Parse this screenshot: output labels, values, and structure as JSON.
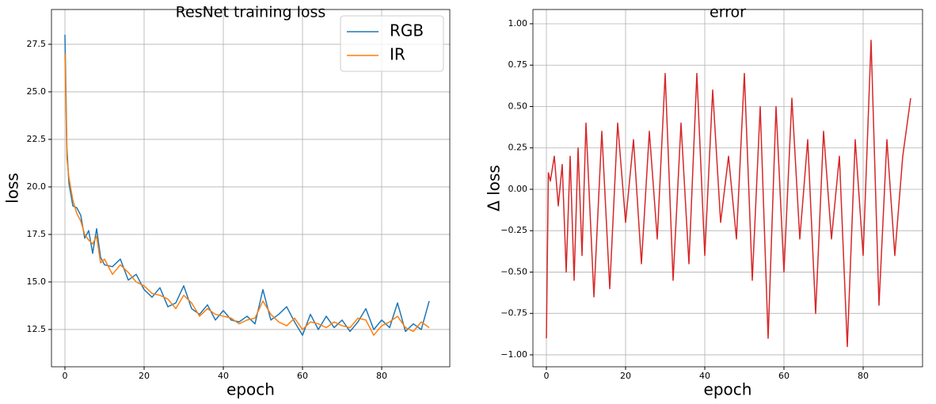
{
  "chart_data": [
    {
      "type": "line",
      "title": "ResNet training loss",
      "x_label": "epoch",
      "y_label": "loss",
      "x": [
        0,
        0.5,
        1,
        2,
        3,
        4,
        5,
        6,
        7,
        8,
        9,
        10,
        12,
        14,
        16,
        18,
        20,
        22,
        24,
        26,
        28,
        30,
        32,
        34,
        36,
        38,
        40,
        42,
        44,
        46,
        48,
        50,
        52,
        54,
        56,
        58,
        60,
        62,
        64,
        66,
        68,
        70,
        72,
        74,
        76,
        78,
        80,
        82,
        84,
        86,
        88,
        90,
        92
      ],
      "series": [
        {
          "name": "RGB",
          "color": "#1f77b4",
          "values": [
            28,
            22,
            20.2,
            19,
            18.9,
            18.5,
            17.3,
            17.7,
            16.5,
            17.8,
            16.3,
            15.9,
            15.8,
            16.2,
            15.1,
            15.4,
            14.6,
            14.2,
            14.7,
            13.7,
            13.9,
            14.8,
            13.6,
            13.3,
            13.8,
            13.0,
            13.5,
            13.0,
            12.9,
            13.2,
            12.8,
            14.6,
            13.0,
            13.3,
            13.7,
            12.9,
            12.2,
            13.3,
            12.5,
            13.2,
            12.6,
            13.0,
            12.4,
            12.9,
            13.6,
            12.5,
            13.0,
            12.6,
            13.9,
            12.4,
            12.8,
            12.5,
            14.0
          ]
        },
        {
          "name": "IR",
          "color": "#ff7f0e",
          "values": [
            27,
            21.5,
            20.5,
            19.3,
            18.6,
            18.2,
            17.5,
            17.2,
            17.0,
            17.4,
            16.0,
            16.2,
            15.4,
            15.9,
            15.5,
            15.0,
            14.8,
            14.4,
            14.3,
            14.1,
            13.6,
            14.3,
            13.9,
            13.2,
            13.6,
            13.3,
            13.2,
            13.1,
            12.8,
            13.0,
            13.1,
            14.0,
            13.3,
            12.9,
            12.7,
            13.1,
            12.5,
            12.9,
            12.8,
            12.6,
            12.9,
            12.7,
            12.6,
            13.1,
            13.0,
            12.2,
            12.7,
            12.9,
            13.2,
            12.6,
            12.4,
            12.9,
            12.6
          ]
        }
      ],
      "xlim": [
        -3.4,
        97.2
      ],
      "xticks": [
        0,
        20,
        40,
        60,
        80
      ],
      "ylim": [
        10.54,
        29.33
      ],
      "yticks": [
        12.5,
        {
          "value": 15,
          "label": "15.0"
        },
        17.5,
        {
          "value": 20,
          "label": "20.0"
        },
        22.5,
        {
          "value": 25,
          "label": "25.0"
        },
        27.5
      ],
      "grid": true,
      "legend": "upper right"
    },
    {
      "type": "line",
      "title": "error",
      "x_label": "epoch",
      "y_label": "Δ loss",
      "x": [
        0,
        0.5,
        1,
        2,
        3,
        4,
        5,
        6,
        7,
        8,
        9,
        10,
        12,
        14,
        16,
        18,
        20,
        22,
        24,
        26,
        28,
        30,
        32,
        34,
        36,
        38,
        40,
        42,
        44,
        46,
        48,
        50,
        52,
        54,
        56,
        58,
        60,
        62,
        64,
        66,
        68,
        70,
        72,
        74,
        76,
        78,
        80,
        82,
        84,
        86,
        88,
        90,
        92
      ],
      "series": [
        {
          "color": "#d62728",
          "values": [
            -0.9,
            0.1,
            0.05,
            0.2,
            -0.1,
            0.15,
            -0.5,
            0.2,
            -0.55,
            0.25,
            -0.4,
            0.4,
            -0.65,
            0.35,
            -0.6,
            0.4,
            -0.2,
            0.3,
            -0.45,
            0.35,
            -0.3,
            0.7,
            -0.55,
            0.4,
            -0.45,
            0.7,
            -0.4,
            0.6,
            -0.2,
            0.2,
            -0.3,
            0.7,
            -0.55,
            0.5,
            -0.9,
            0.5,
            -0.5,
            0.55,
            -0.3,
            0.3,
            -0.75,
            0.35,
            -0.3,
            0.2,
            -0.95,
            0.3,
            -0.4,
            0.9,
            -0.7,
            0.3,
            -0.4,
            0.2,
            0.55
          ]
        }
      ],
      "xlim": [
        -3.4,
        95
      ],
      "xticks": [
        0,
        20,
        40,
        60,
        80
      ],
      "ylim": [
        -1.072,
        1.086
      ],
      "yticks": [
        {
          "value": -1,
          "label": "−1.00"
        },
        {
          "value": -0.75,
          "label": "−0.75"
        },
        {
          "value": -0.5,
          "label": "−0.50"
        },
        {
          "value": -0.25,
          "label": "−0.25"
        },
        {
          "value": 0,
          "label": "0.00"
        },
        {
          "value": 0.25,
          "label": "0.25"
        },
        {
          "value": 0.5,
          "label": "0.50"
        },
        {
          "value": 0.75,
          "label": "0.75"
        },
        {
          "value": 1,
          "label": "1.00"
        }
      ],
      "grid": true
    }
  ]
}
